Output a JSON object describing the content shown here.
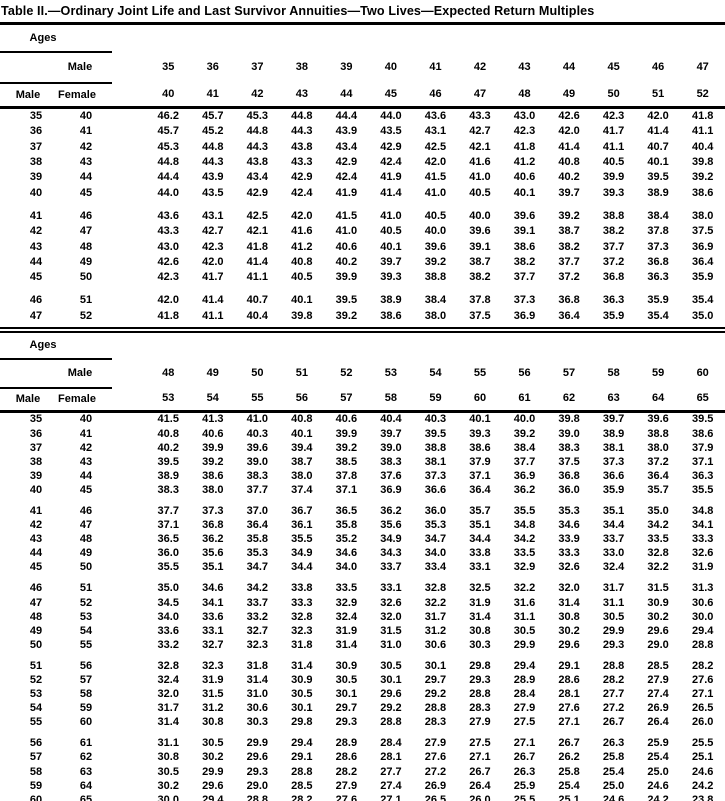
{
  "title": "Table II.—Ordinary Joint Life and Last Survivor Annuities—Two Lives—Expected Return Multiples",
  "header_labels": {
    "ages": "Ages",
    "male": "Male",
    "female": "Female"
  },
  "blocks": [
    {
      "male_ages": [
        "35",
        "36",
        "37",
        "38",
        "39",
        "40",
        "41",
        "42",
        "43",
        "44",
        "45",
        "46",
        "47"
      ],
      "female_ages": [
        "40",
        "41",
        "42",
        "43",
        "44",
        "45",
        "46",
        "47",
        "48",
        "49",
        "50",
        "51",
        "52"
      ],
      "groups": [
        {
          "rows": [
            {
              "male": "35",
              "female": "40",
              "values": [
                "46.2",
                "45.7",
                "45.3",
                "44.8",
                "44.4",
                "44.0",
                "43.6",
                "43.3",
                "43.0",
                "42.6",
                "42.3",
                "42.0",
                "41.8"
              ]
            },
            {
              "male": "36",
              "female": "41",
              "values": [
                "45.7",
                "45.2",
                "44.8",
                "44.3",
                "43.9",
                "43.5",
                "43.1",
                "42.7",
                "42.3",
                "42.0",
                "41.7",
                "41.4",
                "41.1"
              ]
            },
            {
              "male": "37",
              "female": "42",
              "values": [
                "45.3",
                "44.8",
                "44.3",
                "43.8",
                "43.4",
                "42.9",
                "42.5",
                "42.1",
                "41.8",
                "41.4",
                "41.1",
                "40.7",
                "40.4"
              ]
            },
            {
              "male": "38",
              "female": "43",
              "values": [
                "44.8",
                "44.3",
                "43.8",
                "43.3",
                "42.9",
                "42.4",
                "42.0",
                "41.6",
                "41.2",
                "40.8",
                "40.5",
                "40.1",
                "39.8"
              ]
            },
            {
              "male": "39",
              "female": "44",
              "values": [
                "44.4",
                "43.9",
                "43.4",
                "42.9",
                "42.4",
                "41.9",
                "41.5",
                "41.0",
                "40.6",
                "40.2",
                "39.9",
                "39.5",
                "39.2"
              ]
            },
            {
              "male": "40",
              "female": "45",
              "values": [
                "44.0",
                "43.5",
                "42.9",
                "42.4",
                "41.9",
                "41.4",
                "41.0",
                "40.5",
                "40.1",
                "39.7",
                "39.3",
                "38.9",
                "38.6"
              ]
            }
          ]
        },
        {
          "rows": [
            {
              "male": "41",
              "female": "46",
              "values": [
                "43.6",
                "43.1",
                "42.5",
                "42.0",
                "41.5",
                "41.0",
                "40.5",
                "40.0",
                "39.6",
                "39.2",
                "38.8",
                "38.4",
                "38.0"
              ]
            },
            {
              "male": "42",
              "female": "47",
              "values": [
                "43.3",
                "42.7",
                "42.1",
                "41.6",
                "41.0",
                "40.5",
                "40.0",
                "39.6",
                "39.1",
                "38.7",
                "38.2",
                "37.8",
                "37.5"
              ]
            },
            {
              "male": "43",
              "female": "48",
              "values": [
                "43.0",
                "42.3",
                "41.8",
                "41.2",
                "40.6",
                "40.1",
                "39.6",
                "39.1",
                "38.6",
                "38.2",
                "37.7",
                "37.3",
                "36.9"
              ]
            },
            {
              "male": "44",
              "female": "49",
              "values": [
                "42.6",
                "42.0",
                "41.4",
                "40.8",
                "40.2",
                "39.7",
                "39.2",
                "38.7",
                "38.2",
                "37.7",
                "37.2",
                "36.8",
                "36.4"
              ]
            },
            {
              "male": "45",
              "female": "50",
              "values": [
                "42.3",
                "41.7",
                "41.1",
                "40.5",
                "39.9",
                "39.3",
                "38.8",
                "38.2",
                "37.7",
                "37.2",
                "36.8",
                "36.3",
                "35.9"
              ]
            }
          ]
        },
        {
          "rows": [
            {
              "male": "46",
              "female": "51",
              "values": [
                "42.0",
                "41.4",
                "40.7",
                "40.1",
                "39.5",
                "38.9",
                "38.4",
                "37.8",
                "37.3",
                "36.8",
                "36.3",
                "35.9",
                "35.4"
              ]
            },
            {
              "male": "47",
              "female": "52",
              "values": [
                "41.8",
                "41.1",
                "40.4",
                "39.8",
                "39.2",
                "38.6",
                "38.0",
                "37.5",
                "36.9",
                "36.4",
                "35.9",
                "35.4",
                "35.0"
              ]
            }
          ]
        }
      ]
    },
    {
      "male_ages": [
        "48",
        "49",
        "50",
        "51",
        "52",
        "53",
        "54",
        "55",
        "56",
        "57",
        "58",
        "59",
        "60"
      ],
      "female_ages": [
        "53",
        "54",
        "55",
        "56",
        "57",
        "58",
        "59",
        "60",
        "61",
        "62",
        "63",
        "64",
        "65"
      ],
      "groups": [
        {
          "rows": [
            {
              "male": "35",
              "female": "40",
              "values": [
                "41.5",
                "41.3",
                "41.0",
                "40.8",
                "40.6",
                "40.4",
                "40.3",
                "40.1",
                "40.0",
                "39.8",
                "39.7",
                "39.6",
                "39.5"
              ]
            },
            {
              "male": "36",
              "female": "41",
              "values": [
                "40.8",
                "40.6",
                "40.3",
                "40.1",
                "39.9",
                "39.7",
                "39.5",
                "39.3",
                "39.2",
                "39.0",
                "38.9",
                "38.8",
                "38.6"
              ]
            },
            {
              "male": "37",
              "female": "42",
              "values": [
                "40.2",
                "39.9",
                "39.6",
                "39.4",
                "39.2",
                "39.0",
                "38.8",
                "38.6",
                "38.4",
                "38.3",
                "38.1",
                "38.0",
                "37.9"
              ]
            },
            {
              "male": "38",
              "female": "43",
              "values": [
                "39.5",
                "39.2",
                "39.0",
                "38.7",
                "38.5",
                "38.3",
                "38.1",
                "37.9",
                "37.7",
                "37.5",
                "37.3",
                "37.2",
                "37.1"
              ]
            },
            {
              "male": "39",
              "female": "44",
              "values": [
                "38.9",
                "38.6",
                "38.3",
                "38.0",
                "37.8",
                "37.6",
                "37.3",
                "37.1",
                "36.9",
                "36.8",
                "36.6",
                "36.4",
                "36.3"
              ]
            },
            {
              "male": "40",
              "female": "45",
              "values": [
                "38.3",
                "38.0",
                "37.7",
                "37.4",
                "37.1",
                "36.9",
                "36.6",
                "36.4",
                "36.2",
                "36.0",
                "35.9",
                "35.7",
                "35.5"
              ]
            }
          ]
        },
        {
          "rows": [
            {
              "male": "41",
              "female": "46",
              "values": [
                "37.7",
                "37.3",
                "37.0",
                "36.7",
                "36.5",
                "36.2",
                "36.0",
                "35.7",
                "35.5",
                "35.3",
                "35.1",
                "35.0",
                "34.8"
              ]
            },
            {
              "male": "42",
              "female": "47",
              "values": [
                "37.1",
                "36.8",
                "36.4",
                "36.1",
                "35.8",
                "35.6",
                "35.3",
                "35.1",
                "34.8",
                "34.6",
                "34.4",
                "34.2",
                "34.1"
              ]
            },
            {
              "male": "43",
              "female": "48",
              "values": [
                "36.5",
                "36.2",
                "35.8",
                "35.5",
                "35.2",
                "34.9",
                "34.7",
                "34.4",
                "34.2",
                "33.9",
                "33.7",
                "33.5",
                "33.3"
              ]
            },
            {
              "male": "44",
              "female": "49",
              "values": [
                "36.0",
                "35.6",
                "35.3",
                "34.9",
                "34.6",
                "34.3",
                "34.0",
                "33.8",
                "33.5",
                "33.3",
                "33.0",
                "32.8",
                "32.6"
              ]
            },
            {
              "male": "45",
              "female": "50",
              "values": [
                "35.5",
                "35.1",
                "34.7",
                "34.4",
                "34.0",
                "33.7",
                "33.4",
                "33.1",
                "32.9",
                "32.6",
                "32.4",
                "32.2",
                "31.9"
              ]
            }
          ]
        },
        {
          "rows": [
            {
              "male": "46",
              "female": "51",
              "values": [
                "35.0",
                "34.6",
                "34.2",
                "33.8",
                "33.5",
                "33.1",
                "32.8",
                "32.5",
                "32.2",
                "32.0",
                "31.7",
                "31.5",
                "31.3"
              ]
            },
            {
              "male": "47",
              "female": "52",
              "values": [
                "34.5",
                "34.1",
                "33.7",
                "33.3",
                "32.9",
                "32.6",
                "32.2",
                "31.9",
                "31.6",
                "31.4",
                "31.1",
                "30.9",
                "30.6"
              ]
            },
            {
              "male": "48",
              "female": "53",
              "values": [
                "34.0",
                "33.6",
                "33.2",
                "32.8",
                "32.4",
                "32.0",
                "31.7",
                "31.4",
                "31.1",
                "30.8",
                "30.5",
                "30.2",
                "30.0"
              ]
            },
            {
              "male": "49",
              "female": "54",
              "values": [
                "33.6",
                "33.1",
                "32.7",
                "32.3",
                "31.9",
                "31.5",
                "31.2",
                "30.8",
                "30.5",
                "30.2",
                "29.9",
                "29.6",
                "29.4"
              ]
            },
            {
              "male": "50",
              "female": "55",
              "values": [
                "33.2",
                "32.7",
                "32.3",
                "31.8",
                "31.4",
                "31.0",
                "30.6",
                "30.3",
                "29.9",
                "29.6",
                "29.3",
                "29.0",
                "28.8"
              ]
            }
          ]
        },
        {
          "rows": [
            {
              "male": "51",
              "female": "56",
              "values": [
                "32.8",
                "32.3",
                "31.8",
                "31.4",
                "30.9",
                "30.5",
                "30.1",
                "29.8",
                "29.4",
                "29.1",
                "28.8",
                "28.5",
                "28.2"
              ]
            },
            {
              "male": "52",
              "female": "57",
              "values": [
                "32.4",
                "31.9",
                "31.4",
                "30.9",
                "30.5",
                "30.1",
                "29.7",
                "29.3",
                "28.9",
                "28.6",
                "28.2",
                "27.9",
                "27.6"
              ]
            },
            {
              "male": "53",
              "female": "58",
              "values": [
                "32.0",
                "31.5",
                "31.0",
                "30.5",
                "30.1",
                "29.6",
                "29.2",
                "28.8",
                "28.4",
                "28.1",
                "27.7",
                "27.4",
                "27.1"
              ]
            },
            {
              "male": "54",
              "female": "59",
              "values": [
                "31.7",
                "31.2",
                "30.6",
                "30.1",
                "29.7",
                "29.2",
                "28.8",
                "28.3",
                "27.9",
                "27.6",
                "27.2",
                "26.9",
                "26.5"
              ]
            },
            {
              "male": "55",
              "female": "60",
              "values": [
                "31.4",
                "30.8",
                "30.3",
                "29.8",
                "29.3",
                "28.8",
                "28.3",
                "27.9",
                "27.5",
                "27.1",
                "26.7",
                "26.4",
                "26.0"
              ]
            }
          ]
        },
        {
          "rows": [
            {
              "male": "56",
              "female": "61",
              "values": [
                "31.1",
                "30.5",
                "29.9",
                "29.4",
                "28.9",
                "28.4",
                "27.9",
                "27.5",
                "27.1",
                "26.7",
                "26.3",
                "25.9",
                "25.5"
              ]
            },
            {
              "male": "57",
              "female": "62",
              "values": [
                "30.8",
                "30.2",
                "29.6",
                "29.1",
                "28.6",
                "28.1",
                "27.6",
                "27.1",
                "26.7",
                "26.2",
                "25.8",
                "25.4",
                "25.1"
              ]
            },
            {
              "male": "58",
              "female": "63",
              "values": [
                "30.5",
                "29.9",
                "29.3",
                "28.8",
                "28.2",
                "27.7",
                "27.2",
                "26.7",
                "26.3",
                "25.8",
                "25.4",
                "25.0",
                "24.6"
              ]
            },
            {
              "male": "59",
              "female": "64",
              "values": [
                "30.2",
                "29.6",
                "29.0",
                "28.5",
                "27.9",
                "27.4",
                "26.9",
                "26.4",
                "25.9",
                "25.4",
                "25.0",
                "24.6",
                "24.2"
              ]
            },
            {
              "male": "60",
              "female": "65",
              "values": [
                "30.0",
                "29.4",
                "28.8",
                "28.2",
                "27.6",
                "27.1",
                "26.5",
                "26.0",
                "25.5",
                "25.1",
                "24.6",
                "24.2",
                "23.8"
              ]
            }
          ]
        }
      ]
    }
  ]
}
